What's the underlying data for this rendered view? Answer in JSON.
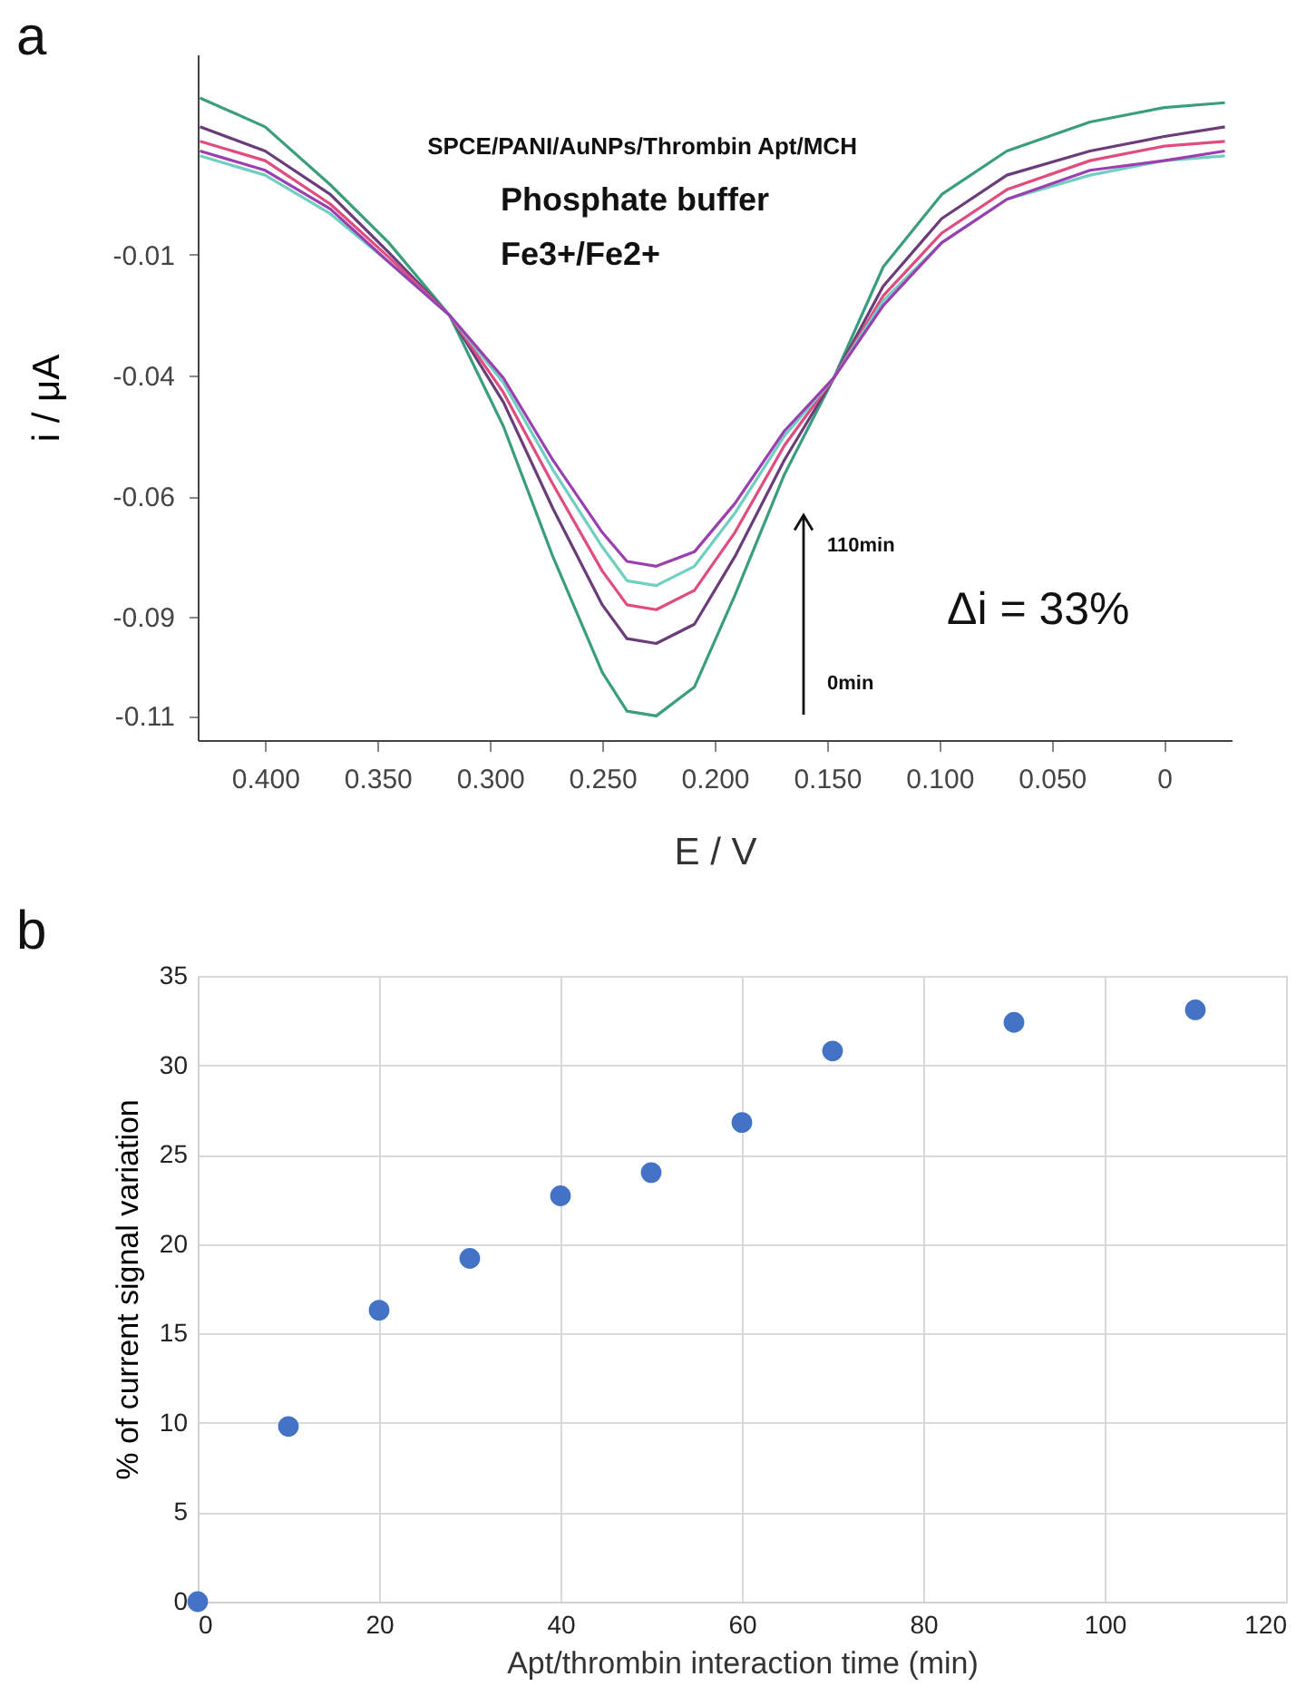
{
  "chart_data": [
    {
      "type": "line",
      "title": "a",
      "xlabel": "E / V",
      "ylabel": "i / μA",
      "x": [
        0.429,
        0.4,
        0.371,
        0.345,
        0.318,
        0.294,
        0.272,
        0.25,
        0.239,
        0.226,
        0.209,
        0.191,
        0.169,
        0.147,
        0.125,
        0.099,
        0.07,
        0.033,
        0.0,
        -0.027
      ],
      "series": [
        {
          "color": "#3a9e7e",
          "values": [
            0.02,
            0.014,
            0.002,
            -0.01,
            -0.025,
            -0.048,
            -0.075,
            -0.099,
            -0.107,
            -0.108,
            -0.102,
            -0.083,
            -0.058,
            -0.038,
            -0.015,
            0.0,
            0.009,
            0.015,
            0.018,
            0.019
          ]
        },
        {
          "color": "#6a3d7a",
          "values": [
            0.014,
            0.009,
            0.0,
            -0.012,
            -0.025,
            -0.043,
            -0.065,
            -0.085,
            -0.092,
            -0.093,
            -0.089,
            -0.075,
            -0.055,
            -0.038,
            -0.019,
            -0.005,
            0.004,
            0.009,
            0.012,
            0.014
          ]
        },
        {
          "color": "#e04c80",
          "values": [
            0.011,
            0.007,
            -0.002,
            -0.013,
            -0.025,
            -0.041,
            -0.06,
            -0.078,
            -0.085,
            -0.086,
            -0.082,
            -0.07,
            -0.052,
            -0.038,
            -0.021,
            -0.008,
            0.001,
            0.007,
            0.01,
            0.011
          ]
        },
        {
          "color": "#6fcfc0",
          "values": [
            0.008,
            0.004,
            -0.004,
            -0.014,
            -0.025,
            -0.039,
            -0.057,
            -0.073,
            -0.08,
            -0.081,
            -0.077,
            -0.066,
            -0.05,
            -0.038,
            -0.022,
            -0.01,
            -0.001,
            0.004,
            0.007,
            0.008
          ]
        },
        {
          "color": "#9b3fb0",
          "values": [
            0.009,
            0.005,
            -0.003,
            -0.014,
            -0.025,
            -0.038,
            -0.055,
            -0.07,
            -0.076,
            -0.077,
            -0.074,
            -0.064,
            -0.049,
            -0.038,
            -0.023,
            -0.01,
            -0.001,
            0.005,
            0.007,
            0.009
          ]
        }
      ],
      "xlim": [
        0.43,
        -0.03
      ],
      "xticks": [
        {
          "value": 0.4,
          "label": "0.400"
        },
        {
          "value": 0.35,
          "label": "0.350"
        },
        {
          "value": 0.3,
          "label": "0.300"
        },
        {
          "value": 0.25,
          "label": "0.250"
        },
        {
          "value": 0.2,
          "label": "0.200"
        },
        {
          "value": 0.15,
          "label": "0.150"
        },
        {
          "value": 0.1,
          "label": "0.100"
        },
        {
          "value": 0.05,
          "label": "0.050"
        },
        0
      ],
      "ylim": [
        -0.113,
        0.029
      ],
      "yticks": [
        {
          "value": -0.0125,
          "label": "-0.01"
        },
        {
          "value": -0.0375,
          "label": "-0.04"
        },
        {
          "value": -0.0625,
          "label": "-0.06"
        },
        {
          "value": -0.0875,
          "label": "-0.09"
        },
        {
          "value": -0.108,
          "label": "-0.11"
        }
      ],
      "annotations": [
        "SPCE/PANI/AuNPs/Thrombin  Apt/MCH",
        "Phosphate buffer",
        "Fe3+/Fe2+",
        "Δi = 33%",
        "110min",
        "0min"
      ]
    },
    {
      "type": "scatter",
      "title": "b",
      "xlabel": "Apt/thrombin interaction time (min)",
      "ylabel": "% of current signal variation",
      "x": [
        0,
        10,
        20,
        30,
        40,
        50,
        60,
        70,
        90,
        110
      ],
      "values": [
        0,
        9.8,
        16.3,
        19.2,
        22.7,
        24.0,
        26.8,
        30.8,
        32.4,
        33.1
      ],
      "color": "#4472c4",
      "marker": "circle",
      "xlim": [
        0,
        120
      ],
      "xticks": [
        0,
        20,
        40,
        60,
        80,
        100,
        120
      ],
      "ylim": [
        0,
        35
      ],
      "yticks": [
        0,
        5,
        10,
        15,
        20,
        25,
        30,
        35
      ],
      "grid": true
    }
  ]
}
